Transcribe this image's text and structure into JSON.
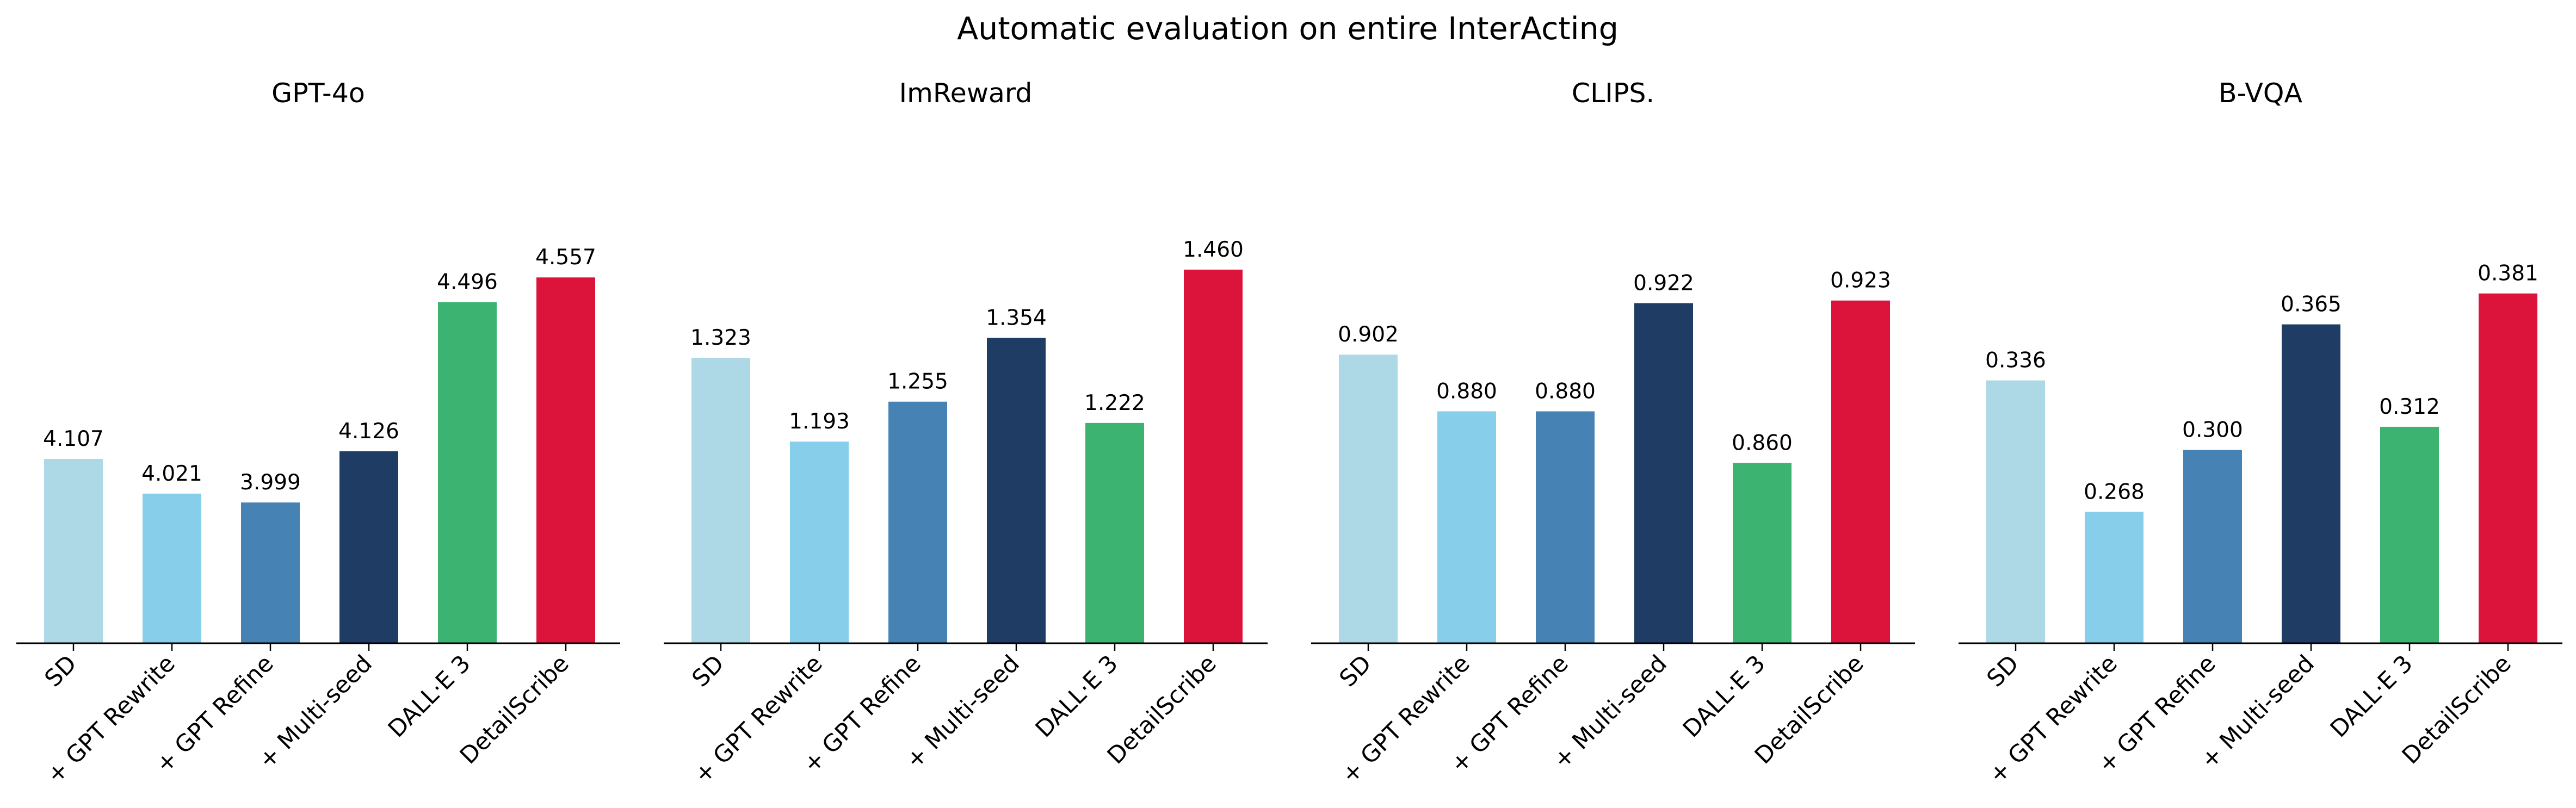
{
  "figure": {
    "title": "Automatic evaluation on entire InterActing"
  },
  "chart_data": [
    {
      "type": "bar",
      "title": "GPT-4o",
      "categories": [
        "SD",
        "+ GPT Rewrite",
        "+ GPT Refine",
        "+ Multi-seed",
        "DALL·E 3",
        "DetailScribe"
      ],
      "values": [
        4.107,
        4.021,
        3.999,
        4.126,
        4.496,
        4.557
      ],
      "value_labels": [
        "4.107",
        "4.021",
        "3.999",
        "4.126",
        "4.496",
        "4.557"
      ],
      "ylim": [
        3.65,
        4.8
      ],
      "xlabel": "",
      "ylabel": "",
      "grid": false,
      "colors": [
        "#add8e6",
        "#87ceeb",
        "#4682b4",
        "#1f3d64",
        "#3cb371",
        "#dc143c"
      ]
    },
    {
      "type": "bar",
      "title": "ImReward",
      "categories": [
        "SD",
        "+ GPT Rewrite",
        "+ GPT Refine",
        "+ Multi-seed",
        "DALL·E 3",
        "DetailScribe"
      ],
      "values": [
        1.323,
        1.193,
        1.255,
        1.354,
        1.222,
        1.46
      ],
      "value_labels": [
        "1.323",
        "1.193",
        "1.255",
        "1.354",
        "1.222",
        "1.460"
      ],
      "ylim": [
        0.88,
        1.6
      ],
      "xlabel": "",
      "ylabel": "",
      "grid": false,
      "colors": [
        "#add8e6",
        "#87ceeb",
        "#4682b4",
        "#1f3d64",
        "#3cb371",
        "#dc143c"
      ]
    },
    {
      "type": "bar",
      "title": "CLIPS.",
      "categories": [
        "SD",
        "+ GPT Rewrite",
        "+ GPT Refine",
        "+ Multi-seed",
        "DALL·E 3",
        "DetailScribe"
      ],
      "values": [
        0.902,
        0.88,
        0.88,
        0.922,
        0.86,
        0.923
      ],
      "value_labels": [
        "0.902",
        "0.880",
        "0.880",
        "0.922",
        "0.860",
        "0.923"
      ],
      "ylim": [
        0.79,
        0.97
      ],
      "xlabel": "",
      "ylabel": "",
      "grid": false,
      "colors": [
        "#add8e6",
        "#87ceeb",
        "#4682b4",
        "#1f3d64",
        "#3cb371",
        "#dc143c"
      ]
    },
    {
      "type": "bar",
      "title": "B-VQA",
      "categories": [
        "SD",
        "+ GPT Rewrite",
        "+ GPT Refine",
        "+ Multi-seed",
        "DALL·E 3",
        "DetailScribe"
      ],
      "values": [
        0.336,
        0.268,
        0.3,
        0.365,
        0.312,
        0.381
      ],
      "value_labels": [
        "0.336",
        "0.268",
        "0.300",
        "0.365",
        "0.312",
        "0.381"
      ],
      "ylim": [
        0.2,
        0.44
      ],
      "xlabel": "",
      "ylabel": "",
      "grid": false,
      "colors": [
        "#add8e6",
        "#87ceeb",
        "#4682b4",
        "#1f3d64",
        "#3cb371",
        "#dc143c"
      ]
    }
  ]
}
